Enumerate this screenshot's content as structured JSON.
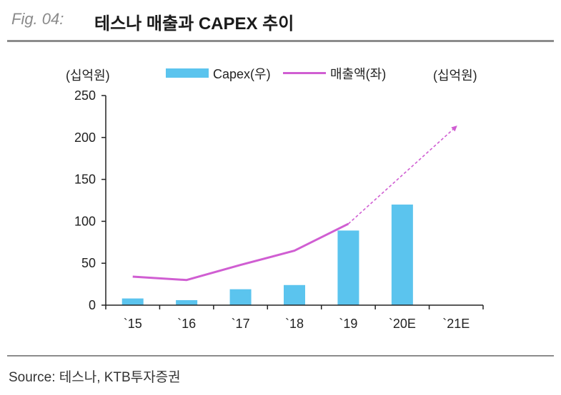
{
  "header": {
    "fig_label": "Fig. 04:",
    "title": "테스나 매출과 CAPEX 추이"
  },
  "units": {
    "left": "(십억원)",
    "right": "(십억원)"
  },
  "legend": {
    "bar_label": "Capex(우)",
    "line_label": "매출액(좌)"
  },
  "source": "Source:  테스나, KTB투자증권",
  "colors": {
    "bar": "#5bc4ee",
    "line": "#d05ed2",
    "axis": "#222222"
  },
  "chart_data": {
    "type": "bar",
    "categories": [
      "`15",
      "`16",
      "`17",
      "`18",
      "`19",
      "`20E",
      "`21E"
    ],
    "series": [
      {
        "name": "Capex(우)",
        "kind": "bar",
        "values": [
          8,
          6,
          19,
          24,
          89,
          120,
          null
        ]
      },
      {
        "name": "매출액(좌)",
        "kind": "line",
        "values": [
          34,
          30,
          48,
          65,
          97,
          null,
          null
        ]
      }
    ],
    "trend_arrow": {
      "from": {
        "category": "`19",
        "value": 97
      },
      "to": {
        "category": "`21E",
        "value": 213
      },
      "style": "dashed"
    },
    "yticks": [
      0,
      50,
      100,
      150,
      200,
      250
    ],
    "ylim": [
      0,
      250
    ],
    "xlabel": "",
    "ylabel": "(십억원)",
    "legend_position": "top"
  }
}
